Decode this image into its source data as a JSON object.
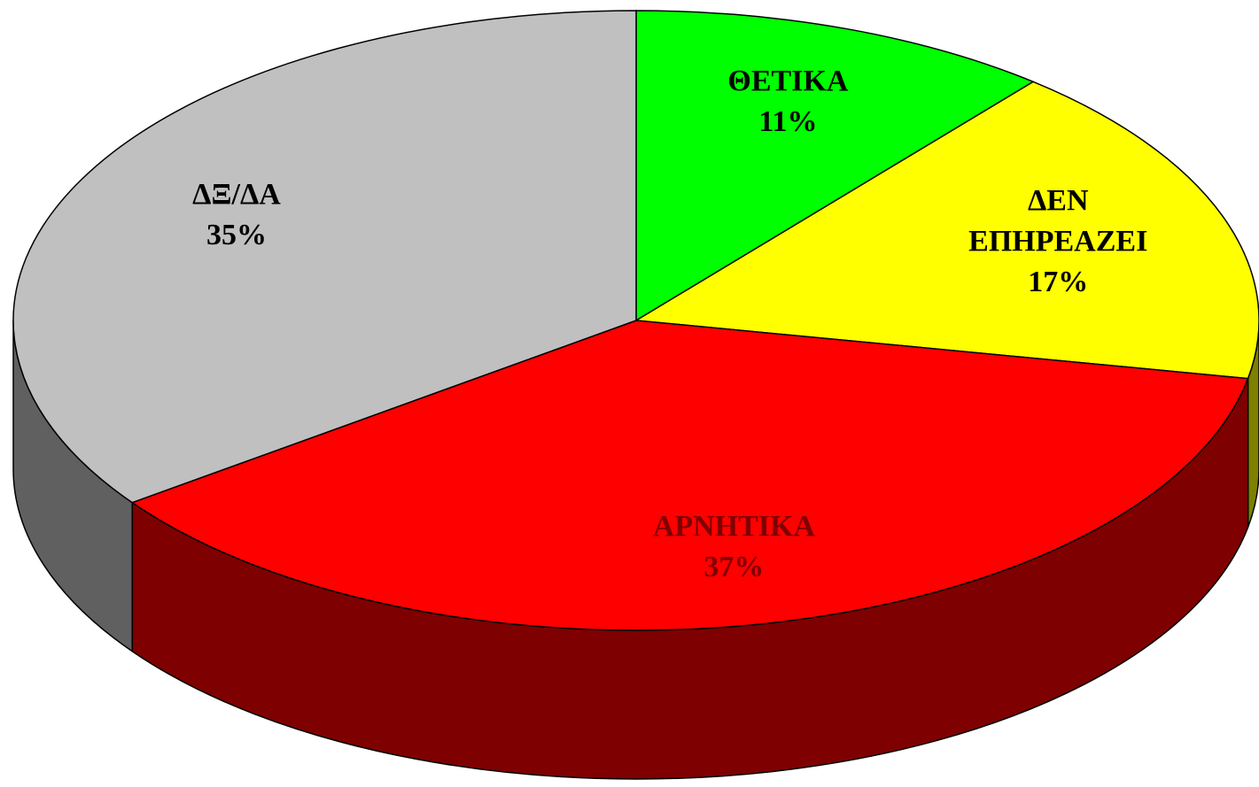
{
  "chart_data": {
    "type": "pie",
    "categories": [
      "ΘΕΤΙΚΑ",
      "ΔΕΝ ΕΠΗΡΕΑΖΕΙ",
      "ΑΡΝΗΤΙΚΑ",
      "ΔΞ/ΔΑ"
    ],
    "values": [
      11,
      17,
      37,
      35
    ],
    "value_labels": [
      "11%",
      "17%",
      "37%",
      "35%"
    ],
    "colors": [
      "#00ff00",
      "#ffff00",
      "#ff0000",
      "#c0c0c0"
    ],
    "label_colors": [
      "#000000",
      "#000000",
      "#800000",
      "#000000"
    ],
    "three_d": true
  }
}
